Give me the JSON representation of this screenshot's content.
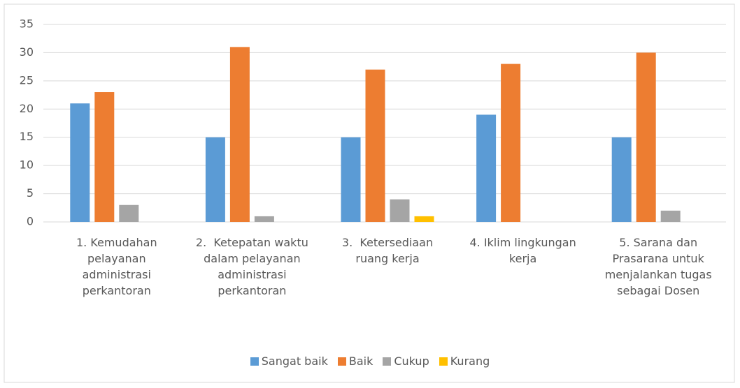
{
  "chart_data": {
    "type": "bar",
    "categories": [
      "1. Kemudahan pelayanan administrasi perkantoran",
      "2.  Ketepatan waktu dalam pelayanan administrasi perkantoran",
      "3.  Ketersediaan ruang kerja",
      "4. Iklim lingkungan kerja",
      "5. Sarana dan Prasarana untuk menjalankan tugas sebagai Dosen"
    ],
    "series": [
      {
        "name": "Sangat baik",
        "color": "#5b9bd5",
        "values": [
          21,
          15,
          15,
          19,
          15
        ]
      },
      {
        "name": "Baik",
        "color": "#ed7d31",
        "values": [
          23,
          31,
          27,
          28,
          30
        ]
      },
      {
        "name": "Cukup",
        "color": "#a5a5a5",
        "values": [
          3,
          1,
          4,
          0,
          2
        ]
      },
      {
        "name": "Kurang",
        "color": "#ffc000",
        "values": [
          0,
          0,
          1,
          0,
          0
        ]
      }
    ],
    "ylim": [
      0,
      35
    ],
    "yticks": [
      0,
      5,
      10,
      15,
      20,
      25,
      30,
      35
    ],
    "grid": true,
    "legend": "bottom"
  }
}
